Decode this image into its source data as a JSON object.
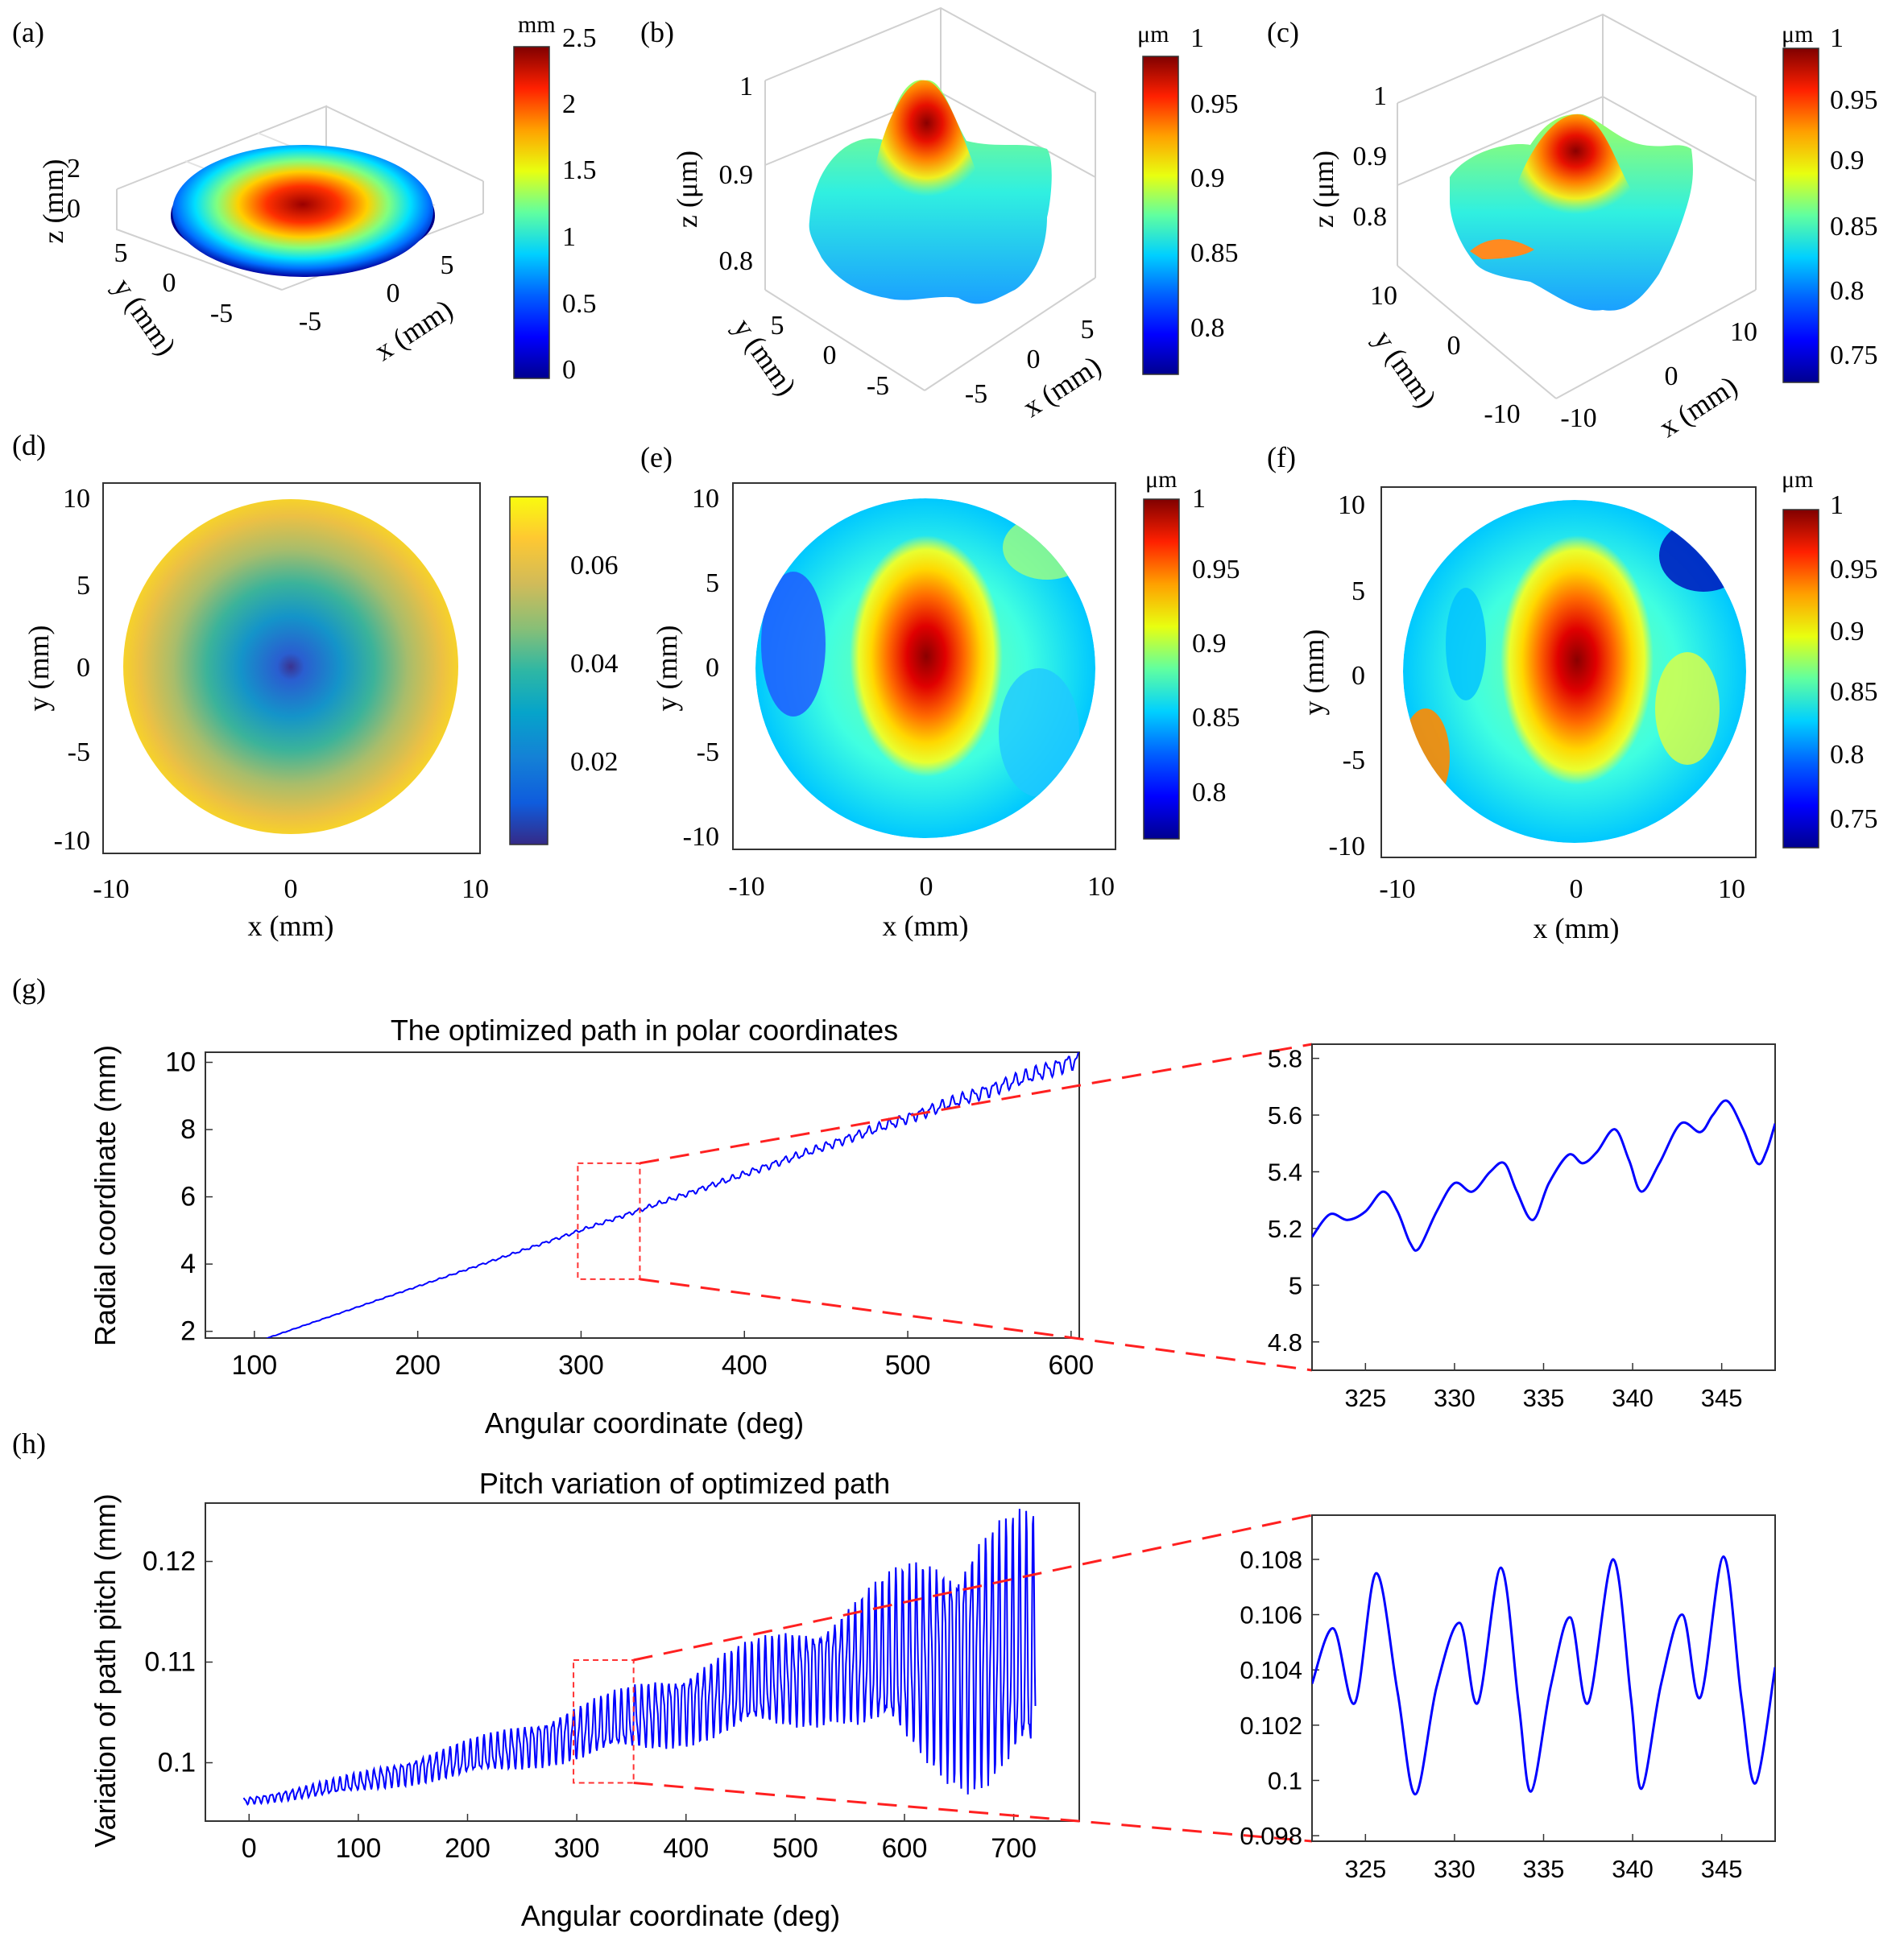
{
  "panels": {
    "a": {
      "label": "(a)",
      "zlabel": "z (mm)",
      "ylabel": "y (mm)",
      "xlabel": "x (mm)",
      "zticks": [
        "2",
        "0"
      ],
      "yticks": [
        "5",
        "0",
        "-5"
      ],
      "xticks": [
        "-5",
        "0",
        "5"
      ],
      "colorbar": {
        "unit": "mm",
        "ticks": [
          "2.5",
          "2",
          "1.5",
          "1",
          "0.5",
          "0"
        ],
        "range": [
          0,
          2.5
        ]
      }
    },
    "b": {
      "label": "(b)",
      "zlabel": "z (μm)",
      "ylabel": "y (mm)",
      "xlabel": "x (mm)",
      "zticks": [
        "1",
        "0.9",
        "0.8"
      ],
      "yticks": [
        "5",
        "0",
        "-5"
      ],
      "xticks": [
        "-5",
        "0",
        "5"
      ],
      "colorbar": {
        "unit": "μm",
        "ticks": [
          "1",
          "0.95",
          "0.9",
          "0.85",
          "0.8"
        ],
        "range": [
          0.77,
          1
        ]
      }
    },
    "c": {
      "label": "(c)",
      "zlabel": "z (μm)",
      "ylabel": "y (mm)",
      "xlabel": "x (mm)",
      "zticks": [
        "1",
        "0.9",
        "0.8"
      ],
      "yticks": [
        "10",
        "0",
        "-10"
      ],
      "xticks": [
        "-10",
        "0",
        "10"
      ],
      "colorbar": {
        "unit": "μm",
        "ticks": [
          "1",
          "0.95",
          "0.9",
          "0.85",
          "0.8",
          "0.75"
        ],
        "range": [
          0.72,
          1
        ]
      }
    },
    "d": {
      "label": "(d)",
      "xlabel": "x (mm)",
      "ylabel": "y (mm)",
      "xticks": [
        "-10",
        "0",
        "10"
      ],
      "yticks": [
        "10",
        "5",
        "0",
        "-5",
        "-10"
      ],
      "colorbar": {
        "unit": "",
        "ticks": [
          "0.06",
          "0.04",
          "0.02"
        ],
        "range": [
          0,
          0.075
        ]
      }
    },
    "e": {
      "label": "(e)",
      "xlabel": "x (mm)",
      "ylabel": "y (mm)",
      "xticks": [
        "-10",
        "0",
        "10"
      ],
      "yticks": [
        "10",
        "5",
        "0",
        "-5",
        "-10"
      ],
      "colorbar": {
        "unit": "μm",
        "ticks": [
          "1",
          "0.95",
          "0.9",
          "0.85",
          "0.8"
        ],
        "range": [
          0.76,
          1
        ]
      }
    },
    "f": {
      "label": "(f)",
      "xlabel": "x (mm)",
      "ylabel": "y (mm)",
      "xticks": [
        "-10",
        "0",
        "10"
      ],
      "yticks": [
        "10",
        "5",
        "0",
        "-5",
        "-10"
      ],
      "colorbar": {
        "unit": "μm",
        "ticks": [
          "1",
          "0.95",
          "0.9",
          "0.85",
          "0.8",
          "0.75"
        ],
        "range": [
          0.72,
          1
        ]
      }
    },
    "g": {
      "label": "(g)"
    },
    "h": {
      "label": "(h)"
    }
  },
  "chart_data": [
    {
      "id": "g-main",
      "type": "line",
      "title": "The optimized path in polar coordinates",
      "xlabel": "Angular coordinate (deg)",
      "ylabel": "Radial coordinate (mm)",
      "xlim": [
        70,
        605
      ],
      "ylim": [
        1.8,
        10.3
      ],
      "xticks": [
        100,
        200,
        300,
        400,
        500,
        600
      ],
      "yticks": [
        2,
        4,
        6,
        8,
        10
      ],
      "x_start": 105,
      "x_end": 605,
      "series": [
        {
          "name": "optimized path",
          "color": "#0000ff",
          "model": "linear radius from 1.75 mm at 105 deg to 10.1 mm at 605 deg with oscillation growing from 0.01 mm to 0.3 mm"
        }
      ],
      "zoom_box": {
        "x": [
          298,
          336
        ],
        "y": [
          3.55,
          7.0
        ]
      }
    },
    {
      "id": "g-zoom",
      "type": "line",
      "xlim": [
        322,
        348
      ],
      "ylim": [
        4.7,
        5.85
      ],
      "xticks": [
        325,
        330,
        335,
        340,
        345
      ],
      "yticks": [
        4.8,
        5,
        5.2,
        5.4,
        5.6,
        5.8
      ],
      "points": [
        [
          322,
          5.17
        ],
        [
          323,
          5.25
        ],
        [
          324,
          5.23
        ],
        [
          325,
          5.26
        ],
        [
          326,
          5.33
        ],
        [
          326.8,
          5.26
        ],
        [
          327.5,
          5.15
        ],
        [
          328,
          5.13
        ],
        [
          329,
          5.26
        ],
        [
          330,
          5.36
        ],
        [
          331,
          5.33
        ],
        [
          332,
          5.4
        ],
        [
          332.8,
          5.43
        ],
        [
          333.5,
          5.33
        ],
        [
          334.4,
          5.23
        ],
        [
          335.3,
          5.36
        ],
        [
          336.4,
          5.46
        ],
        [
          337.2,
          5.43
        ],
        [
          338,
          5.47
        ],
        [
          339,
          5.55
        ],
        [
          339.8,
          5.44
        ],
        [
          340.5,
          5.33
        ],
        [
          341.5,
          5.43
        ],
        [
          342.7,
          5.57
        ],
        [
          343.8,
          5.54
        ],
        [
          344.5,
          5.6
        ],
        [
          345.3,
          5.65
        ],
        [
          346.2,
          5.55
        ],
        [
          347,
          5.43
        ],
        [
          347.5,
          5.47
        ],
        [
          348,
          5.57
        ]
      ]
    },
    {
      "id": "h-main",
      "type": "line",
      "title": "Pitch variation of optimized path",
      "xlabel": "Angular coordinate (deg)",
      "ylabel": "Variation of path pitch (mm)",
      "xlim": [
        -40,
        760
      ],
      "ylim": [
        0.0942,
        0.1258
      ],
      "xticks": [
        0,
        100,
        200,
        300,
        400,
        500,
        600,
        700
      ],
      "yticks": [
        0.1,
        0.11,
        0.12
      ],
      "x_start": -5,
      "x_end": 720,
      "series": [
        {
          "name": "pitch",
          "color": "#0000ff",
          "model": "oscillating pitch, baseline 0.096 mm near 0 deg, envelope widening to 0.0975-0.1255 mm at 720 deg"
        }
      ],
      "zoom_box": {
        "x": [
          297,
          352
        ],
        "y": [
          0.098,
          0.1102
        ]
      }
    },
    {
      "id": "h-zoom",
      "type": "line",
      "xlim": [
        322,
        348
      ],
      "ylim": [
        0.0978,
        0.1096
      ],
      "xticks": [
        325,
        330,
        335,
        340,
        345
      ],
      "yticks": [
        0.098,
        0.1,
        0.102,
        0.104,
        0.106,
        0.108
      ],
      "points": [
        [
          322,
          0.1035
        ],
        [
          323.2,
          0.1055
        ],
        [
          324.4,
          0.1028
        ],
        [
          325.6,
          0.1075
        ],
        [
          326.8,
          0.1032
        ],
        [
          327.8,
          0.0995
        ],
        [
          329,
          0.1034
        ],
        [
          330.3,
          0.1057
        ],
        [
          331.3,
          0.1028
        ],
        [
          332.6,
          0.1077
        ],
        [
          333.6,
          0.1028
        ],
        [
          334.3,
          0.0996
        ],
        [
          335.4,
          0.1034
        ],
        [
          336.5,
          0.1059
        ],
        [
          337.5,
          0.1028
        ],
        [
          338.9,
          0.108
        ],
        [
          339.9,
          0.103
        ],
        [
          340.5,
          0.0997
        ],
        [
          341.6,
          0.1035
        ],
        [
          342.8,
          0.106
        ],
        [
          343.8,
          0.103
        ],
        [
          345.1,
          0.1081
        ],
        [
          346.1,
          0.103
        ],
        [
          346.9,
          0.0999
        ],
        [
          348,
          0.1041
        ]
      ]
    }
  ],
  "colors": {
    "line": "#0000ff",
    "zoom_box": "#ff3333",
    "jet": [
      "#00008f",
      "#0000ff",
      "#0080ff",
      "#00ffff",
      "#80ff80",
      "#ffff00",
      "#ff8000",
      "#ff0000",
      "#800000"
    ],
    "parula": [
      "#352a87",
      "#0f5cdd",
      "#1481d6",
      "#06a4ca",
      "#2eb7a4",
      "#87bf77",
      "#d1bb59",
      "#fec832",
      "#f9fb0e"
    ]
  }
}
